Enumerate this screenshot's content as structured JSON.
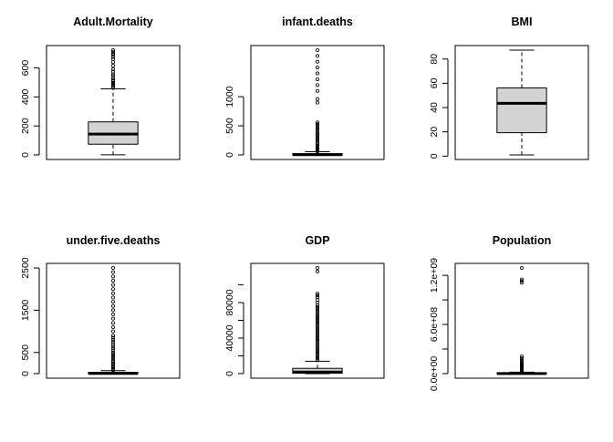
{
  "chart_data": [
    {
      "type": "boxplot",
      "title": "Adult.Mortality",
      "ylim": [
        0,
        723
      ],
      "ticks": [
        0,
        200,
        400,
        600
      ],
      "tick_labels": [
        "0",
        "200",
        "400",
        "600"
      ],
      "box": {
        "min": 1,
        "q1": 74,
        "median": 144,
        "q3": 228,
        "whisker_high": 456
      },
      "outliers": [
        463,
        474,
        484,
        491,
        497,
        508,
        517,
        527,
        546,
        556,
        575,
        590,
        615,
        640,
        660,
        675,
        690,
        700,
        712,
        723
      ]
    },
    {
      "type": "boxplot",
      "title": "infant.deaths",
      "ylim": [
        0,
        1800
      ],
      "ticks": [
        0,
        500,
        1000
      ],
      "tick_labels": [
        "0",
        "500",
        "1000"
      ],
      "box": {
        "min": 0,
        "q1": 0,
        "median": 3,
        "q3": 22,
        "whisker_high": 55
      },
      "outliers": [
        60,
        70,
        85,
        100,
        120,
        140,
        160,
        180,
        200,
        230,
        260,
        290,
        320,
        350,
        380,
        410,
        440,
        470,
        500,
        530,
        560,
        900,
        960,
        1100,
        1200,
        1300,
        1400,
        1500,
        1600,
        1700,
        1800
      ]
    },
    {
      "type": "boxplot",
      "title": "BMI",
      "ylim": [
        1,
        87.3
      ],
      "ticks": [
        0,
        20,
        40,
        60,
        80
      ],
      "tick_labels": [
        "0",
        "20",
        "40",
        "60",
        "80"
      ],
      "box": {
        "min": 1,
        "q1": 19.3,
        "median": 43.5,
        "q3": 56.2,
        "whisker_high": 87.3
      },
      "outliers": []
    },
    {
      "type": "boxplot",
      "title": "under.five.deaths",
      "ylim": [
        0,
        2500
      ],
      "ticks": [
        0,
        500,
        1500,
        2500
      ],
      "tick_labels": [
        "0",
        "500",
        "1500",
        "2500"
      ],
      "box": {
        "min": 0,
        "q1": 0,
        "median": 4,
        "q3": 28,
        "whisker_high": 70
      },
      "outliers": [
        80,
        100,
        120,
        150,
        180,
        210,
        240,
        270,
        300,
        340,
        380,
        420,
        460,
        500,
        550,
        600,
        650,
        700,
        750,
        800,
        850,
        900,
        1000,
        1100,
        1200,
        1300,
        1400,
        1500,
        1600,
        1700,
        1800,
        1900,
        2000,
        2100,
        2200,
        2300,
        2400,
        2500
      ]
    },
    {
      "type": "boxplot",
      "title": "GDP",
      "ylim": [
        0,
        119000
      ],
      "ticks": [
        0,
        40000,
        80000
      ],
      "tick_labels": [
        "0",
        "40000",
        "80000"
      ],
      "minor_ticks": [
        20000,
        60000,
        100000
      ],
      "box": {
        "min": 2,
        "q1": 463,
        "median": 1766,
        "q3": 5910,
        "whisker_high": 14000
      },
      "outliers": [
        15000,
        17000,
        19000,
        21000,
        23000,
        25000,
        27000,
        29000,
        31000,
        33000,
        35000,
        37000,
        39000,
        41000,
        43000,
        45000,
        47000,
        49000,
        51000,
        53000,
        55000,
        57000,
        59000,
        61000,
        63000,
        65000,
        67000,
        69000,
        71000,
        73000,
        75000,
        77000,
        80000,
        83000,
        86000,
        88000,
        90000,
        115000,
        119000
      ]
    },
    {
      "type": "boxplot",
      "title": "Population",
      "ylim": [
        0,
        1290000000.0
      ],
      "ticks": [
        0,
        600000000,
        1200000000
      ],
      "tick_labels": [
        "0.0e+00",
        "6.0e+08",
        "1.2e+09"
      ],
      "minor_ticks": [
        300000000,
        900000000
      ],
      "box": {
        "min": 34,
        "q1": 196000,
        "median": 1390000,
        "q3": 7420000,
        "whisker_high": 18000000
      },
      "outliers": [
        20000000,
        25000000,
        30000000,
        40000000,
        50000000,
        60000000,
        70000000,
        80000000,
        90000000,
        100000000,
        110000000,
        120000000,
        130000000,
        140000000,
        150000000,
        170000000,
        190000000,
        210000000,
        1110000000,
        1130000000,
        1150000000,
        1290000000
      ]
    }
  ]
}
